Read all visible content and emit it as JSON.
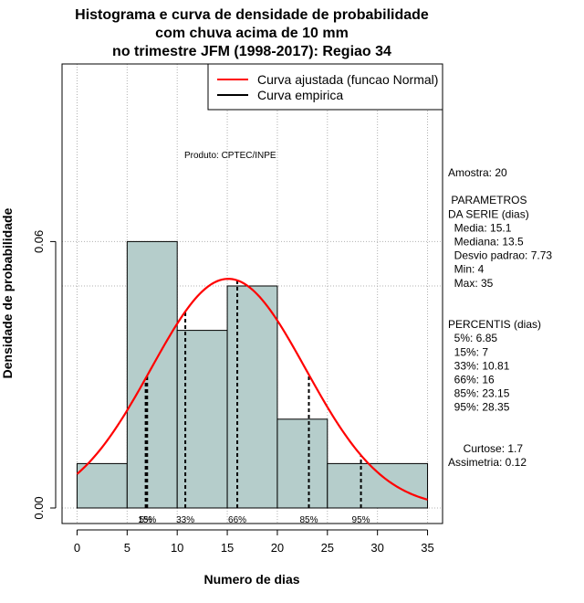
{
  "chart_data": {
    "type": "bar",
    "title_lines": [
      "Histograma e curva de densidade de probabilidade",
      "com chuva acima de 10 mm",
      "no trimestre JFM (1998-2017): Regiao 34"
    ],
    "xlabel": "Numero de dias",
    "ylabel": "Densidade de probabilidade",
    "xlim": [
      -1.5,
      36.5
    ],
    "ylim": [
      -0.0035,
      0.1
    ],
    "x_ticks": [
      0,
      5,
      10,
      15,
      20,
      25,
      30,
      35
    ],
    "y_ticks": [
      0.0,
      0.06
    ],
    "y_tick_labels": [
      "0.00",
      "0.06"
    ],
    "bins": [
      {
        "from": 0,
        "to": 5,
        "density": 0.01
      },
      {
        "from": 5,
        "to": 10,
        "density": 0.06
      },
      {
        "from": 10,
        "to": 15,
        "density": 0.04
      },
      {
        "from": 15,
        "to": 20,
        "density": 0.05
      },
      {
        "from": 20,
        "to": 25,
        "density": 0.02
      },
      {
        "from": 25,
        "to": 35,
        "density": 0.01
      }
    ],
    "grid_x": [
      0,
      5,
      10,
      15,
      20,
      25,
      30,
      35
    ],
    "grid_y": [
      0.0,
      0.05,
      0.06,
      0.1
    ],
    "normal_curve": {
      "mean": 15.1,
      "sd": 7.73,
      "x_from": 0,
      "x_to": 35
    },
    "percentile_lines": [
      {
        "x": 6.85,
        "label": "5%"
      },
      {
        "x": 7,
        "label": "15%"
      },
      {
        "x": 10.81,
        "label": "33%"
      },
      {
        "x": 16,
        "label": "66%"
      },
      {
        "x": 23.15,
        "label": "85%"
      },
      {
        "x": 28.35,
        "label": "95%"
      }
    ],
    "legend": [
      {
        "label": "Curva ajustada (funcao Normal)",
        "color": "#ff0000"
      },
      {
        "label": "Curva empirica",
        "color": "#000000"
      }
    ],
    "legend_position": "top-right",
    "bar_color": "#b5cdcb",
    "curve_color": "#ff0000"
  },
  "annotations": {
    "product": "Produto: CPTEC/INPE",
    "side_panel": [
      "Amostra: 20",
      "",
      " PARAMETROS",
      "DA SERIE (dias)",
      "  Media: 15.1",
      "  Mediana: 13.5",
      "  Desvio padrao: 7.73",
      "  Min: 4",
      "  Max: 35",
      "",
      "",
      "PERCENTIS (dias)",
      "  5%: 6.85",
      "  15%: 7",
      "  33%: 10.81",
      "  66%: 16",
      "  85%: 23.15",
      "  95%: 28.35",
      "",
      "",
      "     Curtose: 1.7",
      "Assimetria: 0.12"
    ]
  }
}
